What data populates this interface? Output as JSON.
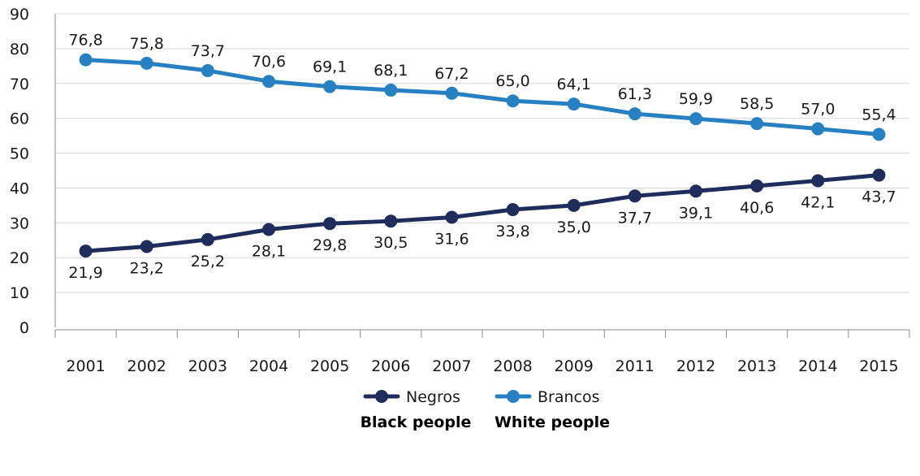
{
  "chart_data": {
    "type": "line",
    "categories": [
      "2001",
      "2002",
      "2003",
      "2004",
      "2005",
      "2006",
      "2007",
      "2008",
      "2009",
      "2011",
      "2012",
      "2013",
      "2014",
      "2015"
    ],
    "ylim": [
      0,
      90
    ],
    "yticks": [
      "0",
      "10",
      "20",
      "30",
      "40",
      "50",
      "60",
      "70",
      "80",
      "90"
    ],
    "grid": "horizontal",
    "legend_position": "bottom",
    "series": [
      {
        "name": "Negros",
        "subtitle": "Black people",
        "color": "#1f2d5c",
        "values": [
          21.9,
          23.2,
          25.2,
          28.1,
          29.8,
          30.5,
          31.6,
          33.8,
          35.0,
          37.7,
          39.1,
          40.6,
          42.1,
          43.7
        ],
        "labels": [
          "21,9",
          "23,2",
          "25,2",
          "28,1",
          "29,8",
          "30,5",
          "31,6",
          "33,8",
          "35,0",
          "37,7",
          "39,1",
          "40,6",
          "42,1",
          "43,7"
        ]
      },
      {
        "name": "Brancos",
        "subtitle": "White people",
        "color": "#2680c2",
        "values": [
          76.8,
          75.8,
          73.7,
          70.6,
          69.1,
          68.1,
          67.2,
          65.0,
          64.1,
          61.3,
          59.9,
          58.5,
          57.0,
          55.4
        ],
        "labels": [
          "76,8",
          "75,8",
          "73,7",
          "70,6",
          "69,1",
          "68,1",
          "67,2",
          "65,0",
          "64,1",
          "61,3",
          "59,9",
          "58,5",
          "57,0",
          "55,4"
        ]
      }
    ]
  }
}
